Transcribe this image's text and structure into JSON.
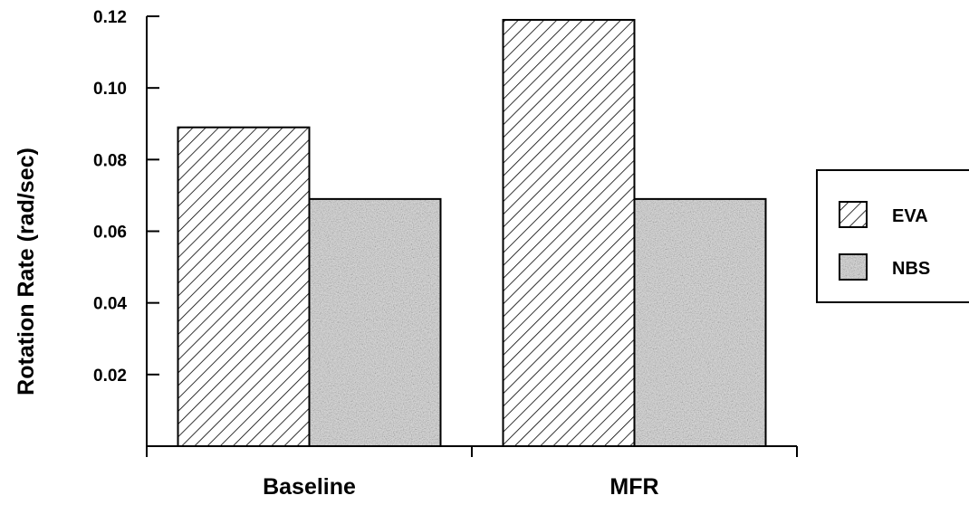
{
  "chart_data": {
    "type": "bar",
    "title": "",
    "xlabel": "",
    "ylabel": "Rotation Rate (rad/sec)",
    "categories": [
      "Baseline",
      "MFR"
    ],
    "series": [
      {
        "name": "EVA",
        "values": [
          0.089,
          0.119
        ],
        "pattern": "diagonal-hatch"
      },
      {
        "name": "NBS",
        "values": [
          0.069,
          0.069
        ],
        "pattern": "gray-stipple"
      }
    ],
    "ylim": [
      0,
      0.12
    ],
    "yticks": [
      "0.02",
      "0.04",
      "0.06",
      "0.08",
      "0.10",
      "0.12"
    ],
    "grid": false,
    "legend_position": "right"
  },
  "colors": {
    "bar_outline": "#000000",
    "hatch_line": "#000000",
    "stipple_base": "#c9c9c9",
    "stipple_dark": "#3a3a3a"
  }
}
